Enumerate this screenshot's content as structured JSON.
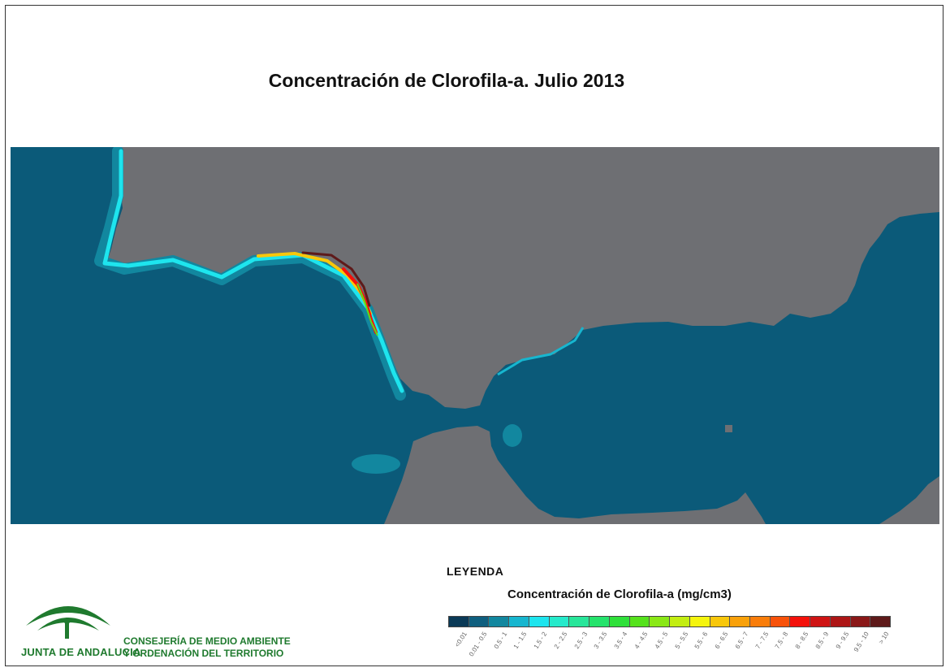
{
  "title": "Concentración de Clorofila-a. Julio 2013",
  "legend": {
    "heading": "LEYENDA",
    "subtitle": "Concentración de Clorofila-a (mg/cm3)",
    "classes": [
      {
        "label": "<0.01",
        "color": "#0b3a57"
      },
      {
        "label": "0.01 - 0.5",
        "color": "#0f5f7f"
      },
      {
        "label": "0.5 - 1",
        "color": "#12879f"
      },
      {
        "label": "1 - 1.5",
        "color": "#17b6cf"
      },
      {
        "label": "1.5 - 2",
        "color": "#1ee5ee"
      },
      {
        "label": "2 - 2.5",
        "color": "#26eacb"
      },
      {
        "label": "2.5 - 3",
        "color": "#28e69a"
      },
      {
        "label": "3 - 3.5",
        "color": "#25e36c"
      },
      {
        "label": "3.5 - 4",
        "color": "#2fe03a"
      },
      {
        "label": "4 - 4.5",
        "color": "#55e21c"
      },
      {
        "label": "4.5 - 5",
        "color": "#8ae816"
      },
      {
        "label": "5 - 5.5",
        "color": "#c3ee12"
      },
      {
        "label": "5.5 - 6",
        "color": "#f5f50e"
      },
      {
        "label": "6 - 6.5",
        "color": "#f8c70b"
      },
      {
        "label": "6.5 - 7",
        "color": "#f9a10a"
      },
      {
        "label": "7 - 7.5",
        "color": "#f97d0a"
      },
      {
        "label": "7.5 - 8",
        "color": "#f8520a"
      },
      {
        "label": "8 - 8.5",
        "color": "#f4110b"
      },
      {
        "label": "8.5 - 9",
        "color": "#cf1414"
      },
      {
        "label": "9 - 9.5",
        "color": "#ad1616"
      },
      {
        "label": "9.5 - 10",
        "color": "#8a1818"
      },
      {
        "label": "> 10",
        "color": "#5e1a1a"
      }
    ]
  },
  "map_colors": {
    "sea": "#0b5a79",
    "land": "#6e6f73"
  },
  "logo": {
    "name": "JUNTA DE ANDALUCIA",
    "org_line1": "CONSEJERÍA DE MEDIO AMBIENTE",
    "org_line2": "Y ORDENACIÓN DEL TERRITORIO",
    "color": "#1f7a2e"
  }
}
